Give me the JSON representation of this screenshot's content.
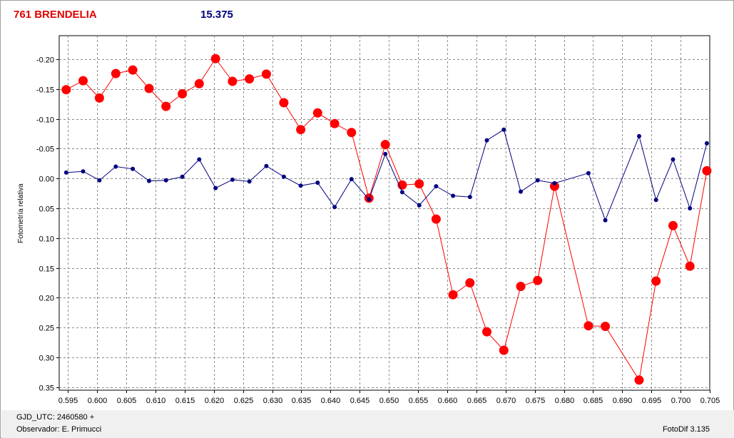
{
  "chart_data": {
    "type": "line",
    "title": "761 BRENDELIA",
    "subtitle": "15.375",
    "ylabel": "Fotometría relativa",
    "xlim": [
      0.5935,
      0.705
    ],
    "ylim": [
      -0.2395,
      0.355
    ],
    "y_inverted": true,
    "grid": true,
    "x_ticks": [
      "0.595",
      "0.600",
      "0.605",
      "0.610",
      "0.615",
      "0.620",
      "0.625",
      "0.630",
      "0.635",
      "0.640",
      "0.645",
      "0.650",
      "0.655",
      "0.660",
      "0.665",
      "0.670",
      "0.675",
      "0.680",
      "0.685",
      "0.690",
      "0.695",
      "0.700",
      "0.705"
    ],
    "y_ticks": [
      "-0.20",
      "-0.15",
      "-0.10",
      "-0.05",
      "0.00",
      "0.05",
      "0.10",
      "0.15",
      "0.20",
      "0.25",
      "0.30",
      "0.35"
    ],
    "colors": {
      "asteroid": "#ff0000",
      "comparison": "#000080",
      "title": "#e00000",
      "subtitle": "#000080"
    },
    "series": [
      {
        "key": "asteroid",
        "x": [
          0.5947,
          0.5976,
          0.6004,
          0.6032,
          0.6061,
          0.6089,
          0.6118,
          0.6146,
          0.6175,
          0.6203,
          0.6232,
          0.6261,
          0.629,
          0.632,
          0.6349,
          0.6378,
          0.6407,
          0.6436,
          0.6466,
          0.6494,
          0.6523,
          0.6552,
          0.6581,
          0.661,
          0.6639,
          0.6668,
          0.6697,
          0.6726,
          0.6755,
          0.6784,
          0.6842,
          0.6871,
          0.6929,
          0.6958,
          0.6987,
          0.7016,
          0.7045
        ],
        "y": [
          -0.149,
          -0.164,
          -0.135,
          -0.176,
          -0.182,
          -0.151,
          -0.121,
          -0.142,
          -0.159,
          -0.201,
          -0.163,
          -0.167,
          -0.175,
          -0.127,
          -0.082,
          -0.11,
          -0.092,
          -0.077,
          0.033,
          -0.057,
          0.011,
          0.009,
          0.068,
          0.195,
          0.175,
          0.257,
          0.288,
          0.181,
          0.171,
          0.013,
          0.247,
          0.248,
          0.338,
          0.172,
          0.079,
          0.147,
          -0.013
        ]
      },
      {
        "key": "comparison",
        "x": [
          0.5947,
          0.5976,
          0.6004,
          0.6032,
          0.6061,
          0.6089,
          0.6118,
          0.6146,
          0.6175,
          0.6203,
          0.6232,
          0.6261,
          0.629,
          0.632,
          0.6349,
          0.6378,
          0.6407,
          0.6436,
          0.6466,
          0.6494,
          0.6523,
          0.6552,
          0.6581,
          0.661,
          0.6639,
          0.6668,
          0.6697,
          0.6726,
          0.6755,
          0.6784,
          0.6842,
          0.6871,
          0.6929,
          0.6958,
          0.6987,
          0.7016,
          0.7045
        ],
        "y": [
          -0.01,
          -0.012,
          0.003,
          -0.02,
          -0.016,
          0.004,
          0.003,
          -0.003,
          -0.032,
          0.016,
          0.002,
          0.005,
          -0.021,
          -0.003,
          0.012,
          0.007,
          0.048,
          0.001,
          0.035,
          -0.041,
          0.023,
          0.045,
          0.013,
          0.029,
          0.031,
          -0.064,
          -0.082,
          0.022,
          0.003,
          0.008,
          -0.009,
          0.07,
          -0.071,
          0.036,
          -0.032,
          0.05,
          -0.059
        ]
      }
    ]
  },
  "footer": {
    "gjd": "GJD_UTC: 2460580 +",
    "observer": "Observador: E. Primucci",
    "software": "FotoDif 3.135"
  }
}
